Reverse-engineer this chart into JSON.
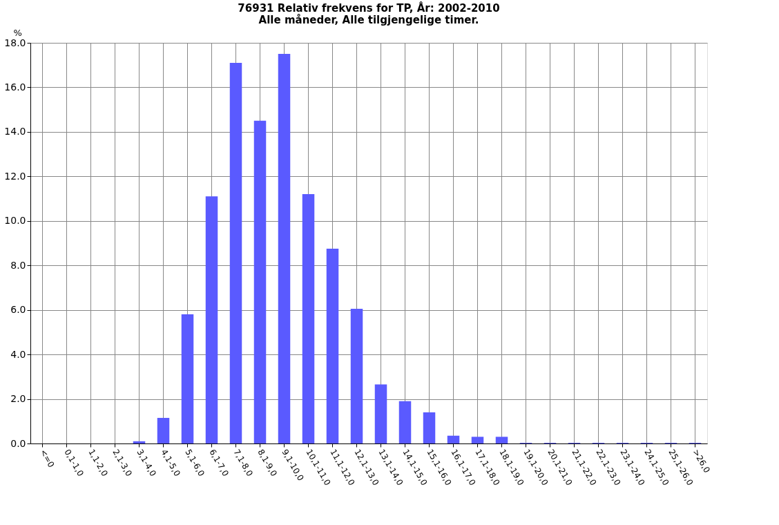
{
  "chart_data": {
    "type": "bar",
    "title": [
      "76931 Relativ frekvens for TP, År: 2002-2010",
      "Alle måneder, Alle tilgjengelige timer."
    ],
    "ylabel": "%",
    "categories": [
      "<=0",
      "0,1-1,0",
      "1,1-2,0",
      "2,1-3,0",
      "3,1-4,0",
      "4,1-5,0",
      "5,1-6,0",
      "6,1-7,0",
      "7,1-8,0",
      "8,1-9,0",
      "9,1-10,0",
      "10,1-11,0",
      "11,1-12,0",
      "12,1-13,0",
      "13,1-14,0",
      "14,1-15,0",
      "15,1-16,0",
      "16,1-17,0",
      "17,1-18,0",
      "18,1-19,0",
      "19,1-20,0",
      "20,1-21,0",
      "21,1-22,0",
      "22,1-23,0",
      "23,1-24,0",
      "24,1-25,0",
      "25,1-26,0",
      ">26,0"
    ],
    "values": [
      0,
      0,
      0,
      0,
      0.1,
      1.15,
      5.8,
      11.1,
      17.1,
      14.5,
      17.5,
      11.2,
      8.75,
      6.05,
      2.65,
      1.9,
      1.4,
      0.35,
      0.3,
      0.3,
      0.03,
      0.03,
      0.03,
      0.03,
      0.03,
      0.03,
      0.03,
      0.03
    ],
    "color": "#5a5aff",
    "ylim": [
      0,
      18
    ],
    "yticks": [
      {
        "value": 0,
        "label": "0.0"
      },
      {
        "value": 2,
        "label": "2.0"
      },
      {
        "value": 4,
        "label": "4.0"
      },
      {
        "value": 6,
        "label": "6.0"
      },
      {
        "value": 8,
        "label": "8.0"
      },
      {
        "value": 10,
        "label": "10.0"
      },
      {
        "value": 12,
        "label": "12.0"
      },
      {
        "value": 14,
        "label": "14.0"
      },
      {
        "value": 16,
        "label": "16.0"
      },
      {
        "value": 18,
        "label": "18.0"
      }
    ],
    "grid": true
  }
}
